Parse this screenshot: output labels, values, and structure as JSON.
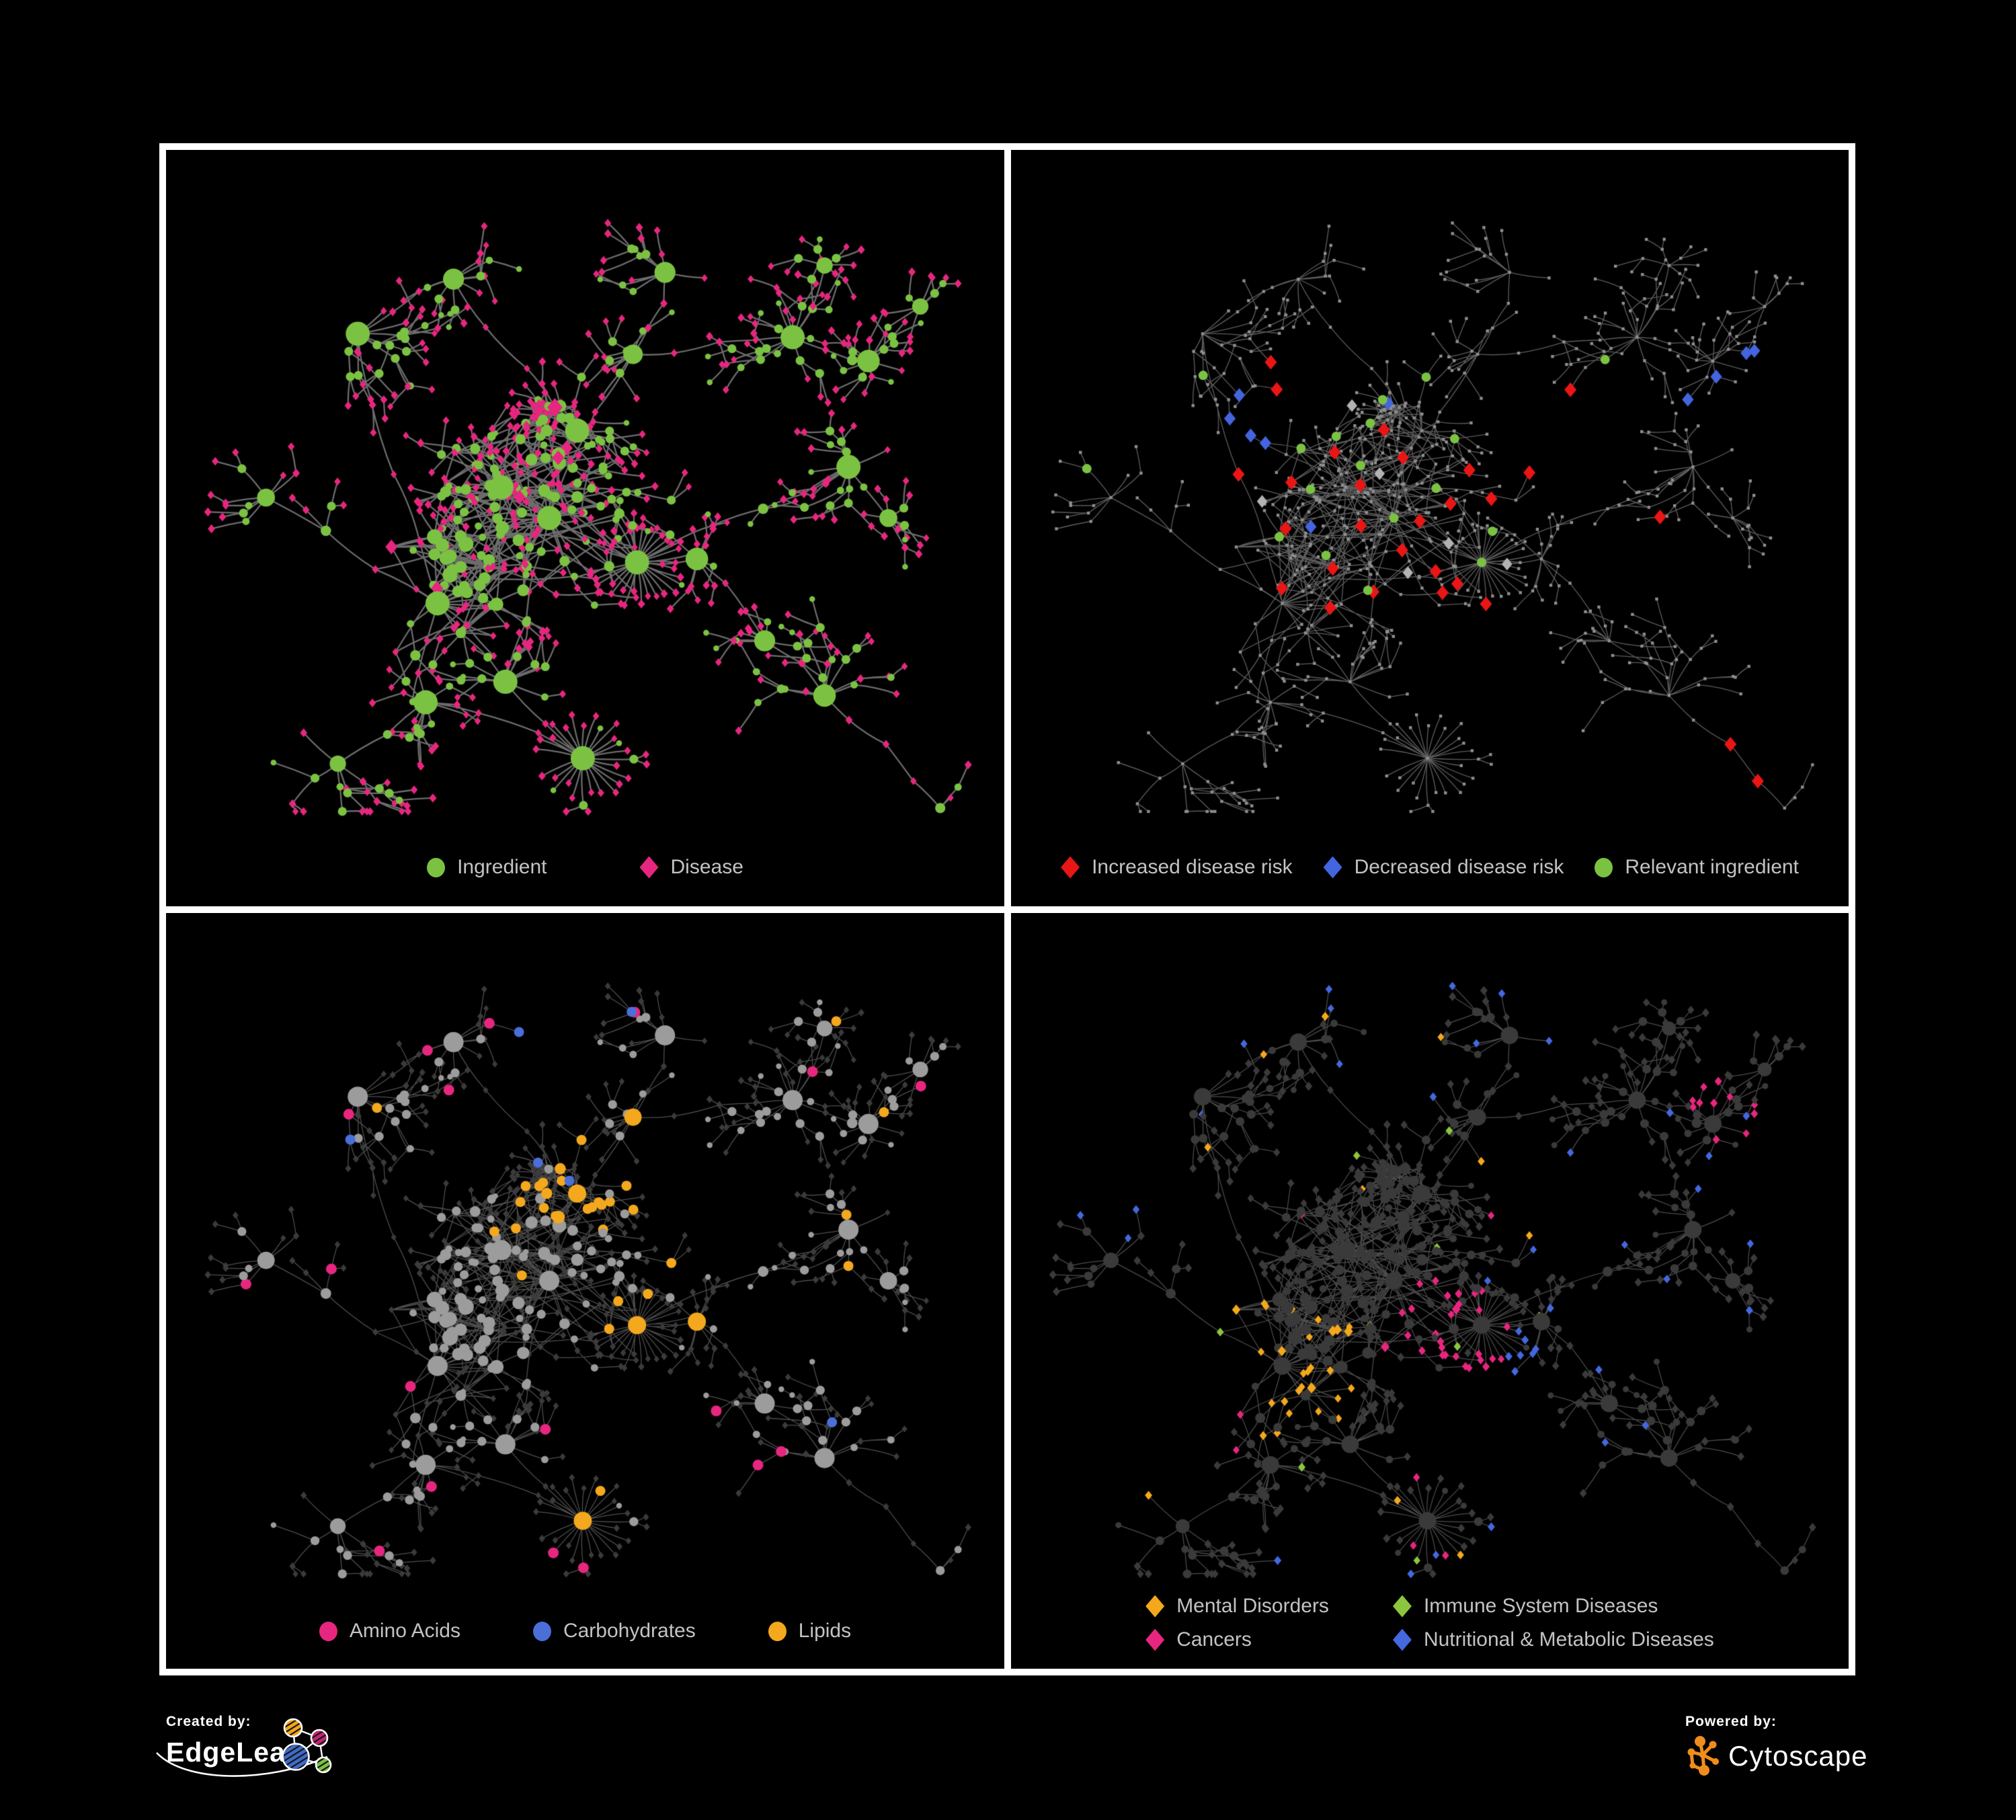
{
  "panels": [
    {
      "name": "ingredient-disease-network",
      "legend": [
        {
          "label": "Ingredient",
          "shape": "circle",
          "color": "#7CC242"
        },
        {
          "label": "Disease",
          "shape": "diamond",
          "color": "#E7267F"
        }
      ],
      "network_style": {
        "edge_color": "rgba(108,108,108,1)",
        "edge_width": 2.3,
        "ingredient_color": "#7CC242",
        "disease_color": "#E7267F"
      }
    },
    {
      "name": "disease-risk-network",
      "legend": [
        {
          "label": "Increased disease risk",
          "shape": "diamond",
          "color": "#EA1515"
        },
        {
          "label": "Decreased disease risk",
          "shape": "diamond",
          "color": "#4365DF"
        },
        {
          "label": "Relevant ingredient",
          "shape": "circle",
          "color": "#7CC242"
        }
      ],
      "network_style": {
        "edge_color": "rgba(97,97,97,0.95)",
        "edge_width": 1.35,
        "node_dot_color": "#8F8F8F",
        "increased_color": "#EA1515",
        "decreased_color": "#4365DF",
        "neutral_color": "#B3B3B3",
        "ingredient_color": "#7CC242",
        "increased_count": 28,
        "decreased_count": 10,
        "neutral_count": 6,
        "ingredient_count": 18
      }
    },
    {
      "name": "nutrient-class-network",
      "legend": [
        {
          "label": "Amino Acids",
          "shape": "circle",
          "color": "#E7267F"
        },
        {
          "label": "Carbohydrates",
          "shape": "circle",
          "color": "#4A6FD8"
        },
        {
          "label": "Lipids",
          "shape": "circle",
          "color": "#F4A81D"
        }
      ],
      "network_style": {
        "edge_color": "rgba(156,156,156,0.5)",
        "edge_width": 1.3,
        "ingredient_color": "#9C9C9C",
        "disease_color": "#3B3B3B",
        "amino_color": "#E7267F",
        "carb_color": "#4A6FD8",
        "lipid_color": "#F4A81D"
      }
    },
    {
      "name": "disease-category-network",
      "legend_layout": "two-column",
      "legend": [
        {
          "label": "Mental Disorders",
          "shape": "diamond",
          "color": "#F4A81C"
        },
        {
          "label": "Cancers",
          "shape": "diamond",
          "color": "#E7267F"
        },
        {
          "label": "Immune System Diseases",
          "shape": "diamond",
          "color": "#8CC63F"
        },
        {
          "label": "Nutritional & Metabolic Diseases",
          "shape": "diamond",
          "color": "#4468DF"
        }
      ],
      "network_style": {
        "edge_color": "rgba(168,168,168,0.45)",
        "edge_width": 1.25,
        "base_color": "#3A3A3A",
        "mental_color": "#F4A81C",
        "cancer_color": "#E7267F",
        "immune_color": "#8CC63F",
        "nutritional_color": "#4468DF"
      }
    }
  ],
  "footer": {
    "created_by_label": "Created by:",
    "created_by_brand": "EdgeLeap",
    "powered_by_label": "Powered by:",
    "powered_by_brand": "Cytoscape",
    "edgeleap_mark_colors": {
      "orange": "#F2A71B",
      "magenta": "#C22671",
      "blue": "#3F6BC6",
      "green": "#7CC242"
    },
    "cytoscape_mark_color": "#F08C1D"
  },
  "frame": {
    "border_color": "#FFFFFF",
    "background_color": "#000000",
    "legend_text_color": "#C3C3C3"
  }
}
